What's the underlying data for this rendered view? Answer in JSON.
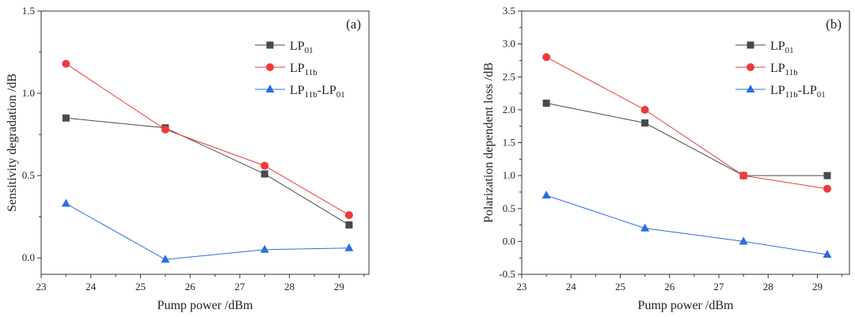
{
  "chart_data": [
    {
      "type": "line",
      "panel_label": "(a)",
      "title": "",
      "xlabel": "Pump power /dBm",
      "ylabel": "Sensitivity degradation /dB",
      "xlim": [
        23,
        29.6
      ],
      "ylim": [
        -0.1,
        1.5
      ],
      "xticks": [
        23,
        24,
        25,
        26,
        27,
        28,
        29
      ],
      "yticks": [
        0.0,
        0.5,
        1.0,
        1.5
      ],
      "ytick_labels": [
        "0.0",
        "0.5",
        "1.0",
        "1.5"
      ],
      "grid": false,
      "legend_position": "top-right",
      "x": [
        23.5,
        25.5,
        27.5,
        29.2
      ],
      "series": [
        {
          "name": "LP01",
          "base": "LP",
          "sub": "01",
          "color": "#4a4a4a",
          "marker": "square",
          "values": [
            0.85,
            0.79,
            0.51,
            0.2
          ]
        },
        {
          "name": "LP11b",
          "base": "LP",
          "sub": "11b",
          "color": "#f03a3a",
          "marker": "circle",
          "values": [
            1.18,
            0.78,
            0.56,
            0.26
          ]
        },
        {
          "name": "LP11b-LP01",
          "base": "LP",
          "sub": "11b",
          "base2": "-LP",
          "sub2": "01",
          "color": "#2a6fe0",
          "marker": "triangle",
          "values": [
            0.33,
            -0.01,
            0.05,
            0.06
          ]
        }
      ]
    },
    {
      "type": "line",
      "panel_label": "(b)",
      "title": "",
      "xlabel": "Pump power /dBm",
      "ylabel": "Polarization dependent loss /dB",
      "xlim": [
        23,
        29.65
      ],
      "ylim": [
        -0.5,
        3.5
      ],
      "xticks": [
        23,
        24,
        25,
        26,
        27,
        28,
        29
      ],
      "yticks": [
        -0.5,
        0.0,
        0.5,
        1.0,
        1.5,
        2.0,
        2.5,
        3.0,
        3.5
      ],
      "ytick_labels": [
        "-0.5",
        "0.0",
        "0.5",
        "1.0",
        "1.5",
        "2.0",
        "2.5",
        "3.0",
        "3.5"
      ],
      "grid": false,
      "legend_position": "top-right",
      "x": [
        23.5,
        25.5,
        27.5,
        29.2
      ],
      "series": [
        {
          "name": "LP01",
          "base": "LP",
          "sub": "01",
          "color": "#4a4a4a",
          "marker": "square",
          "values": [
            2.1,
            1.8,
            1.0,
            1.0
          ]
        },
        {
          "name": "LP11b",
          "base": "LP",
          "sub": "11b",
          "color": "#f03a3a",
          "marker": "circle",
          "values": [
            2.8,
            2.0,
            1.0,
            0.8
          ]
        },
        {
          "name": "LP11b-LP01",
          "base": "LP",
          "sub": "11b",
          "base2": "-LP",
          "sub2": "01",
          "color": "#2a6fe0",
          "marker": "triangle",
          "values": [
            0.7,
            0.2,
            0.0,
            -0.2
          ]
        }
      ]
    }
  ]
}
